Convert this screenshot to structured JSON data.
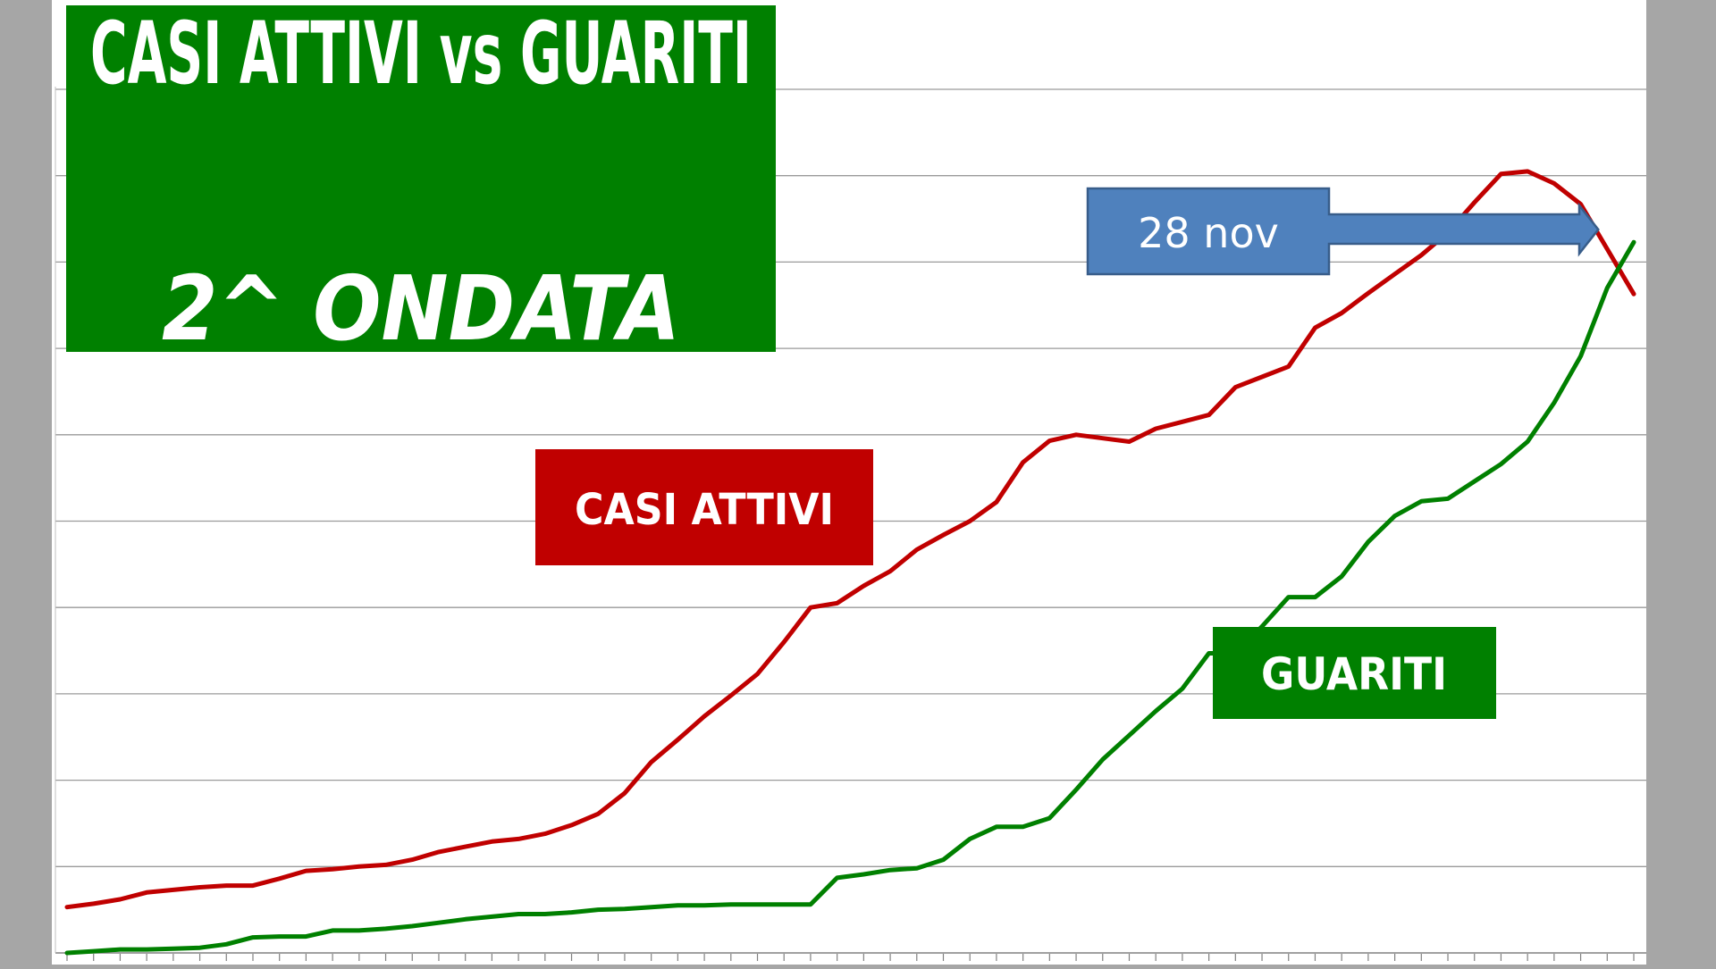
{
  "chart_data": {
    "type": "line",
    "title": "CASI ATTIVI vs GUARITI",
    "subtitle": "2^ ONDATA",
    "xlabel": "",
    "ylabel": "",
    "ylim": [
      0,
      10
    ],
    "grid": true,
    "x_count": 60,
    "series": [
      {
        "name": "CASI ATTIVI",
        "color": "#c00000",
        "values": [
          0.53,
          0.57,
          0.62,
          0.7,
          0.73,
          0.76,
          0.78,
          0.78,
          0.86,
          0.95,
          0.97,
          1.0,
          1.02,
          1.08,
          1.17,
          1.23,
          1.29,
          1.32,
          1.38,
          1.48,
          1.61,
          1.85,
          2.21,
          2.47,
          2.74,
          2.98,
          3.23,
          3.6,
          4.0,
          4.05,
          4.25,
          4.42,
          4.67,
          4.84,
          5.0,
          5.22,
          5.68,
          5.93,
          6.0,
          5.96,
          5.92,
          6.07,
          6.15,
          6.23,
          6.55,
          6.67,
          6.79,
          7.24,
          7.41,
          7.64,
          7.86,
          8.08,
          8.34,
          8.69,
          9.02,
          9.05,
          8.91,
          8.67,
          8.15,
          7.63
        ]
      },
      {
        "name": "GUARITI",
        "color": "#008000",
        "values": [
          0.0,
          0.02,
          0.04,
          0.04,
          0.05,
          0.06,
          0.1,
          0.18,
          0.19,
          0.19,
          0.26,
          0.26,
          0.28,
          0.31,
          0.35,
          0.39,
          0.42,
          0.45,
          0.45,
          0.47,
          0.5,
          0.51,
          0.53,
          0.55,
          0.55,
          0.56,
          0.56,
          0.56,
          0.56,
          0.87,
          0.91,
          0.96,
          0.98,
          1.08,
          1.32,
          1.46,
          1.46,
          1.56,
          1.89,
          2.24,
          2.52,
          2.8,
          3.06,
          3.47,
          3.47,
          3.78,
          4.12,
          4.12,
          4.36,
          4.76,
          5.06,
          5.23,
          5.26,
          5.46,
          5.66,
          5.92,
          6.37,
          6.91,
          7.7,
          8.23
        ]
      }
    ],
    "labels": {
      "casi_attivi": "CASI ATTIVI",
      "guariti": "GUARITI"
    },
    "annotation": {
      "text": "28 nov",
      "fill": "#4f81bd",
      "stroke": "#385d8a",
      "points_to_index": 58
    },
    "title_box_color": "#008000"
  }
}
